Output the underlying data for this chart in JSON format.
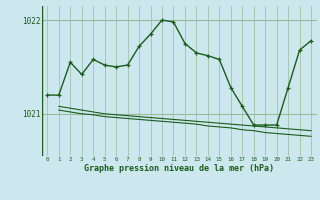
{
  "title": "Graphe pression niveau de la mer (hPa)",
  "bg_color": "#cce8ee",
  "grid_color": "#99bb99",
  "line_color": "#1a5c1a",
  "xlim": [
    -0.5,
    23.5
  ],
  "ylim": [
    1020.55,
    1022.15
  ],
  "yticks": [
    1021,
    1022
  ],
  "xticks": [
    0,
    1,
    2,
    3,
    4,
    5,
    6,
    7,
    8,
    9,
    10,
    11,
    12,
    13,
    14,
    15,
    16,
    17,
    18,
    19,
    20,
    21,
    22,
    23
  ],
  "main_line_x": [
    0,
    1,
    2,
    3,
    4,
    5,
    6,
    7,
    8,
    9,
    10,
    11,
    12,
    13,
    14,
    15,
    16,
    17,
    18,
    19,
    20,
    21,
    22,
    23
  ],
  "main_line_y": [
    1021.2,
    1021.2,
    1021.55,
    1021.42,
    1021.58,
    1021.52,
    1021.5,
    1021.52,
    1021.72,
    1021.85,
    1022.0,
    1021.98,
    1021.75,
    1021.65,
    1021.62,
    1021.58,
    1021.28,
    1021.08,
    1020.88,
    1020.88,
    1020.88,
    1021.28,
    1021.68,
    1021.78
  ],
  "flat_line1_x": [
    1,
    2,
    3,
    4,
    5,
    6,
    7,
    8,
    9,
    10,
    11,
    12,
    13,
    14,
    15,
    16,
    17,
    18,
    19,
    20,
    21,
    22,
    23
  ],
  "flat_line1_y": [
    1021.08,
    1021.06,
    1021.04,
    1021.02,
    1021.0,
    1020.99,
    1020.98,
    1020.97,
    1020.96,
    1020.95,
    1020.94,
    1020.93,
    1020.92,
    1020.91,
    1020.9,
    1020.89,
    1020.88,
    1020.87,
    1020.86,
    1020.85,
    1020.84,
    1020.83,
    1020.82
  ],
  "flat_line2_x": [
    1,
    2,
    3,
    4,
    5,
    6,
    7,
    8,
    9,
    10,
    11,
    12,
    13,
    14,
    15,
    16,
    17,
    18,
    19,
    20,
    21,
    22,
    23
  ],
  "flat_line2_y": [
    1021.04,
    1021.02,
    1021.0,
    1020.99,
    1020.97,
    1020.96,
    1020.95,
    1020.94,
    1020.93,
    1020.92,
    1020.91,
    1020.9,
    1020.89,
    1020.87,
    1020.86,
    1020.85,
    1020.83,
    1020.82,
    1020.8,
    1020.79,
    1020.78,
    1020.77,
    1020.76
  ]
}
